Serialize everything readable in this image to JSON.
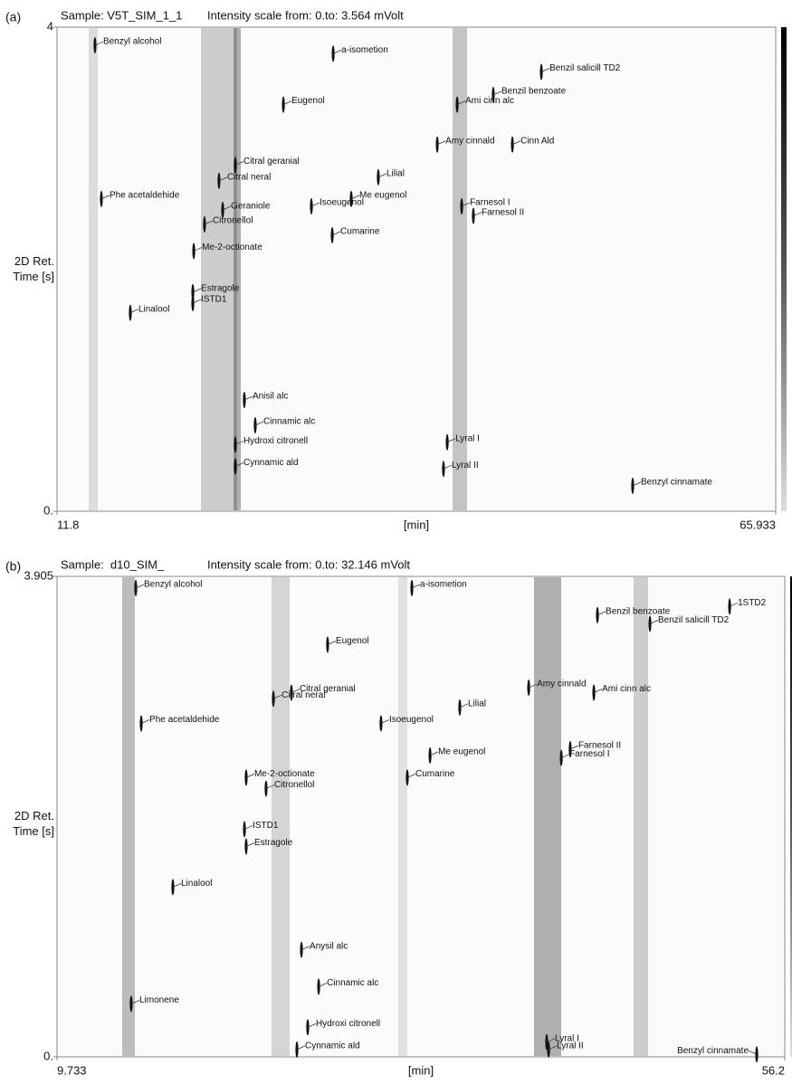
{
  "chart_data": [
    {
      "type": "contour",
      "panel": "(a)",
      "sample": "Sample: V5T_SIM_1_1",
      "subtitle": "Intensity scale from: 0.to: 3.564 mVolt",
      "xlabel": "[min]",
      "ylabel": "2D Ret. Time [s]",
      "xlim": [
        11.8,
        65.933
      ],
      "ylim": [
        0,
        4
      ],
      "xticks": [
        11.8,
        65.933
      ],
      "yticks": [
        {
          "value": 0,
          "label": "0."
        },
        4
      ],
      "peaks": [
        {
          "name": "Benzyl alcohol",
          "x": 14.66,
          "y": 3.85
        },
        {
          "name": "a-isometion",
          "x": 32.6,
          "y": 3.78
        },
        {
          "name": "Benzil salicill TD2",
          "x": 48.28,
          "y": 3.63
        },
        {
          "name": "Eugenol",
          "x": 28.85,
          "y": 3.36
        },
        {
          "name": "Benzil benzoate",
          "x": 44.66,
          "y": 3.44
        },
        {
          "name": "Ami cinn alc",
          "x": 41.94,
          "y": 3.36
        },
        {
          "name": "Amy cinnald",
          "x": 40.44,
          "y": 3.03
        },
        {
          "name": "Cinn Ald",
          "x": 46.1,
          "y": 3.03
        },
        {
          "name": "Citral geranial",
          "x": 25.23,
          "y": 2.86
        },
        {
          "name": "Lilial",
          "x": 36.0,
          "y": 2.76
        },
        {
          "name": "Citral neral",
          "x": 24.0,
          "y": 2.73
        },
        {
          "name": "Phe acetaldehide",
          "x": 15.14,
          "y": 2.58
        },
        {
          "name": "Me eugenol",
          "x": 33.96,
          "y": 2.58
        },
        {
          "name": "Farnesol I",
          "x": 42.28,
          "y": 2.52
        },
        {
          "name": "Isoeugenol",
          "x": 30.96,
          "y": 2.52
        },
        {
          "name": "Geraniole",
          "x": 24.28,
          "y": 2.49
        },
        {
          "name": "Farnesol II",
          "x": 43.16,
          "y": 2.44
        },
        {
          "name": "Citronellol",
          "x": 22.91,
          "y": 2.37
        },
        {
          "name": "Cumarine",
          "x": 32.53,
          "y": 2.28
        },
        {
          "name": "Me-2-octionate",
          "x": 22.1,
          "y": 2.15
        },
        {
          "name": "Estragole",
          "x": 22.03,
          "y": 1.81
        },
        {
          "name": "ISTD1",
          "x": 22.03,
          "y": 1.72
        },
        {
          "name": "Linalool",
          "x": 17.32,
          "y": 1.64
        },
        {
          "name": "Anisil alc",
          "x": 25.91,
          "y": 0.92
        },
        {
          "name": "Cinnamic alc",
          "x": 26.73,
          "y": 0.71
        },
        {
          "name": "Hydroxi citronell",
          "x": 25.23,
          "y": 0.55
        },
        {
          "name": "Lyral I",
          "x": 41.19,
          "y": 0.57
        },
        {
          "name": "Lyral II",
          "x": 40.91,
          "y": 0.35
        },
        {
          "name": "Cynnamic ald",
          "x": 25.23,
          "y": 0.37
        },
        {
          "name": "Benzyl cinnamate",
          "x": 55.16,
          "y": 0.21
        }
      ]
    },
    {
      "type": "contour",
      "panel": "(b)",
      "sample": "Sample:  d10_SIM_",
      "subtitle": "Intensity scale from: 0.to: 32.146 mVolt",
      "xlabel": "[min]",
      "ylabel": "2D Ret. Time [s]",
      "xlim": [
        9.733,
        56.2
      ],
      "ylim": [
        0,
        3.905
      ],
      "xticks": [
        9.733,
        56.2
      ],
      "yticks": [
        {
          "value": 0,
          "label": "0."
        },
        3.905
      ],
      "peaks": [
        {
          "name": "Benzyl alcohol",
          "x": 14.76,
          "y": 3.81
        },
        {
          "name": "a-isometion",
          "x": 32.39,
          "y": 3.81
        },
        {
          "name": "Benzil benzoate",
          "x": 44.24,
          "y": 3.59
        },
        {
          "name": "1STD2",
          "x": 52.68,
          "y": 3.66
        },
        {
          "name": "Benzil salicill TD2",
          "x": 47.59,
          "y": 3.52
        },
        {
          "name": "Eugenol",
          "x": 27.01,
          "y": 3.35
        },
        {
          "name": "Citral geranial",
          "x": 24.7,
          "y": 2.96
        },
        {
          "name": "Citral neral",
          "x": 23.55,
          "y": 2.91
        },
        {
          "name": "Lilial",
          "x": 35.45,
          "y": 2.84
        },
        {
          "name": "Amy cinnald",
          "x": 39.85,
          "y": 3.0
        },
        {
          "name": "Ami cinn alc",
          "x": 44.01,
          "y": 2.96
        },
        {
          "name": "Phe acetaldehide",
          "x": 15.11,
          "y": 2.71
        },
        {
          "name": "Isoeugenol",
          "x": 30.42,
          "y": 2.71
        },
        {
          "name": "Farnesol II",
          "x": 42.5,
          "y": 2.5
        },
        {
          "name": "Me eugenol",
          "x": 33.55,
          "y": 2.45
        },
        {
          "name": "Farnesol I",
          "x": 41.93,
          "y": 2.43
        },
        {
          "name": "Me-2-octionate",
          "x": 21.81,
          "y": 2.27
        },
        {
          "name": "Cumarine",
          "x": 32.1,
          "y": 2.27
        },
        {
          "name": "Citronellol",
          "x": 23.08,
          "y": 2.18
        },
        {
          "name": "ISTD1",
          "x": 21.7,
          "y": 1.85
        },
        {
          "name": "Estragole",
          "x": 21.81,
          "y": 1.71
        },
        {
          "name": "Linalool",
          "x": 17.13,
          "y": 1.38
        },
        {
          "name": "Anysil alc",
          "x": 25.34,
          "y": 0.87
        },
        {
          "name": "Cinnamic alc",
          "x": 26.44,
          "y": 0.57
        },
        {
          "name": "Limonene",
          "x": 14.47,
          "y": 0.43
        },
        {
          "name": "Hydroxi citronell",
          "x": 25.74,
          "y": 0.24
        },
        {
          "name": "Lyral I",
          "x": 41.0,
          "y": 0.12
        },
        {
          "name": "Cynnamic ald",
          "x": 25.05,
          "y": 0.06
        },
        {
          "name": "Lyral II",
          "x": 41.12,
          "y": 0.06
        },
        {
          "name": "Benzyl cinnamate",
          "x": 54.41,
          "y": 0.02
        }
      ]
    }
  ]
}
